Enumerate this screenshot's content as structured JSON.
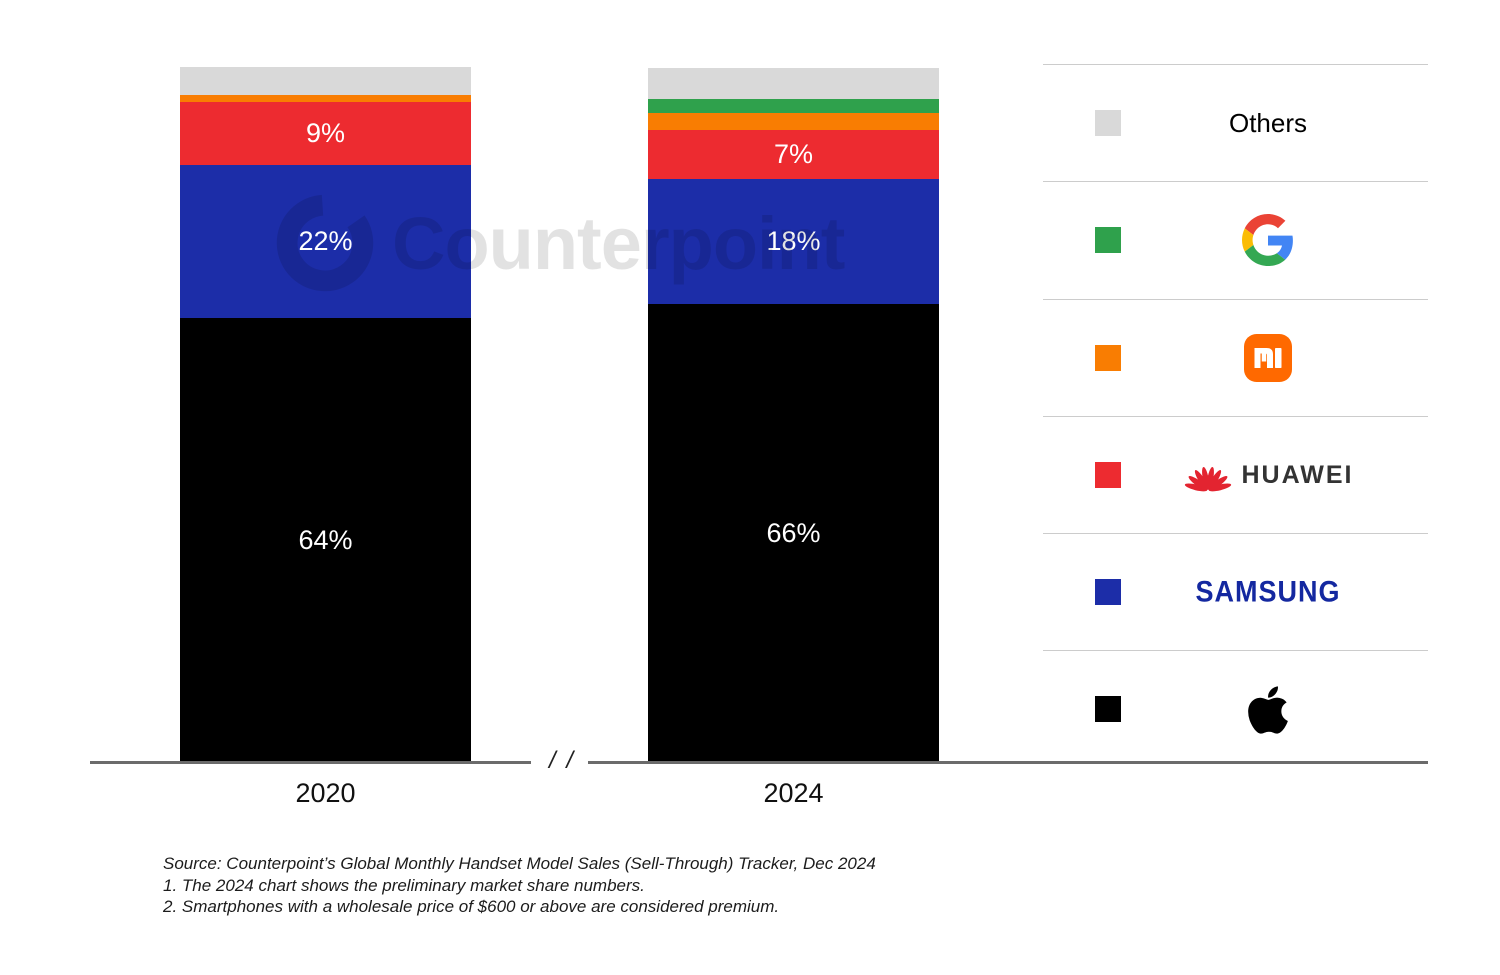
{
  "watermark": {
    "text": "Counterpoint"
  },
  "chart_data": {
    "type": "bar",
    "stacked": true,
    "unit": "%",
    "title": "",
    "xlabel": "",
    "ylabel": "",
    "ylim": [
      0,
      100
    ],
    "grid": false,
    "legend_position": "right",
    "categories": [
      "2020",
      "2024"
    ],
    "series": [
      {
        "name": "Apple",
        "color": "#000000",
        "values": [
          64,
          66
        ],
        "labeled": true,
        "estimated": false
      },
      {
        "name": "Samsung",
        "color": "#1c2da8",
        "values": [
          22,
          18
        ],
        "labeled": true,
        "estimated": false
      },
      {
        "name": "Huawei",
        "color": "#ed2b30",
        "values": [
          9,
          7
        ],
        "labeled": true,
        "estimated": false
      },
      {
        "name": "Xiaomi",
        "color": "#f97d02",
        "values": [
          1,
          2.5
        ],
        "labeled": false,
        "estimated": true
      },
      {
        "name": "Google",
        "color": "#2fa14c",
        "values": [
          0,
          2
        ],
        "labeled": false,
        "estimated": true
      },
      {
        "name": "Others",
        "color": "#d9d9d9",
        "values": [
          4,
          4.5
        ],
        "labeled": false,
        "estimated": true
      }
    ]
  },
  "x_axis": {
    "labels": [
      "2020",
      "2024"
    ],
    "break_symbol": "/ /"
  },
  "legend": {
    "items": [
      {
        "name": "Others",
        "swatch": "#d9d9d9",
        "logo": "text",
        "label": "Others"
      },
      {
        "name": "Google",
        "swatch": "#2fa14c",
        "logo": "google",
        "label": ""
      },
      {
        "name": "Xiaomi",
        "swatch": "#f97d02",
        "logo": "xiaomi",
        "label": ""
      },
      {
        "name": "Huawei",
        "swatch": "#ed2b30",
        "logo": "huawei",
        "label": "HUAWEI"
      },
      {
        "name": "Samsung",
        "swatch": "#1c2da8",
        "logo": "samsung",
        "label": "SAMSUNG"
      },
      {
        "name": "Apple",
        "swatch": "#000000",
        "logo": "apple",
        "label": ""
      }
    ]
  },
  "source_note": {
    "lines": [
      "Source: Counterpoint’s Global Monthly Handset Model Sales (Sell-Through) Tracker, Dec 2024",
      "1. The 2024 chart shows the preliminary market share numbers.",
      "2. Smartphones with a wholesale price of $600 or above are considered premium."
    ]
  }
}
